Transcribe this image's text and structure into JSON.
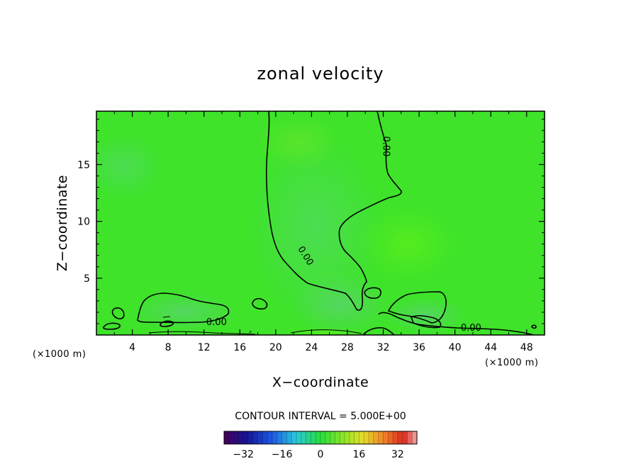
{
  "chart_data": {
    "type": "heatmap",
    "title": "zonal velocity",
    "xlabel": "X−coordinate",
    "ylabel": "Z−coordinate",
    "x_unit_label": "(×1000 m)",
    "x_unit_label_right": "(×1000 m)",
    "xlim": [
      0,
      50
    ],
    "ylim": [
      0,
      19.7
    ],
    "xticks": [
      4,
      8,
      12,
      16,
      20,
      24,
      28,
      32,
      36,
      40,
      44,
      48
    ],
    "xtick_labels": [
      "4",
      "8",
      "12",
      "16",
      "20",
      "24",
      "28",
      "32",
      "36",
      "40",
      "44",
      "48"
    ],
    "yticks": [
      5,
      10,
      15
    ],
    "ytick_labels": [
      "5",
      "10",
      "15"
    ],
    "contour_interval_text": "CONTOUR INTERVAL = 5.000E+00",
    "contour_labels": [
      {
        "text": "0.00",
        "x": 23.4,
        "y": 7.0,
        "angle": 58
      },
      {
        "text": "0.00",
        "x": 32.4,
        "y": 16.6,
        "angle": 90
      },
      {
        "text": "0.00",
        "x": 13.4,
        "y": 1.2,
        "angle": 0
      },
      {
        "text": "0.00",
        "x": 41.8,
        "y": 0.7,
        "angle": 0
      }
    ],
    "colorbar": {
      "min": -40,
      "max": 40,
      "ticks": [
        -32,
        -16,
        0,
        16,
        32
      ],
      "tick_labels": [
        "−32",
        "−16",
        "0",
        "16",
        "32"
      ]
    },
    "background_value": 0,
    "colors": {
      "field_base": "#3ee32a",
      "zero_contour": "#000000"
    }
  }
}
